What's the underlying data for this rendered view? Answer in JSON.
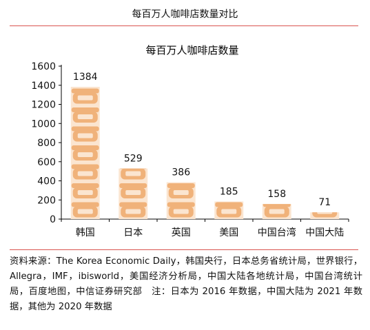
{
  "figure_title": "每百万人咖啡店数量对比",
  "source_note": "资料来源：The Korea Economic Daily，韩国央行，日本总务省统计局，世界银行，Allegra，IMF，ibisworld，美国经济分析局，中国大陆各地统计局，中国台湾统计局，百度地图，中信证券研究部　注：日本为 2016 年数据，中国大陆为 2021 年数据，其他为 2020 年数据",
  "colors": {
    "rule": "#d9534f",
    "bar": "#f0b27a",
    "bar_light": "#fbe5d0",
    "axis": "#000000"
  },
  "icon": "coffee-cup-icon",
  "chart_data": {
    "type": "bar",
    "title": "每百万人咖啡店数量",
    "categories": [
      "韩国",
      "日本",
      "英国",
      "美国",
      "中国台湾",
      "中国大陆"
    ],
    "values": [
      1384,
      529,
      386,
      185,
      158,
      71
    ],
    "data_labels": [
      "1384",
      "529",
      "386",
      "185",
      "158",
      "71"
    ],
    "ylim": [
      0,
      1600
    ],
    "yticks": [
      "0",
      "200",
      "400",
      "600",
      "800",
      "1000",
      "1200",
      "1400",
      "1600"
    ],
    "grid": false,
    "legend": "none"
  }
}
